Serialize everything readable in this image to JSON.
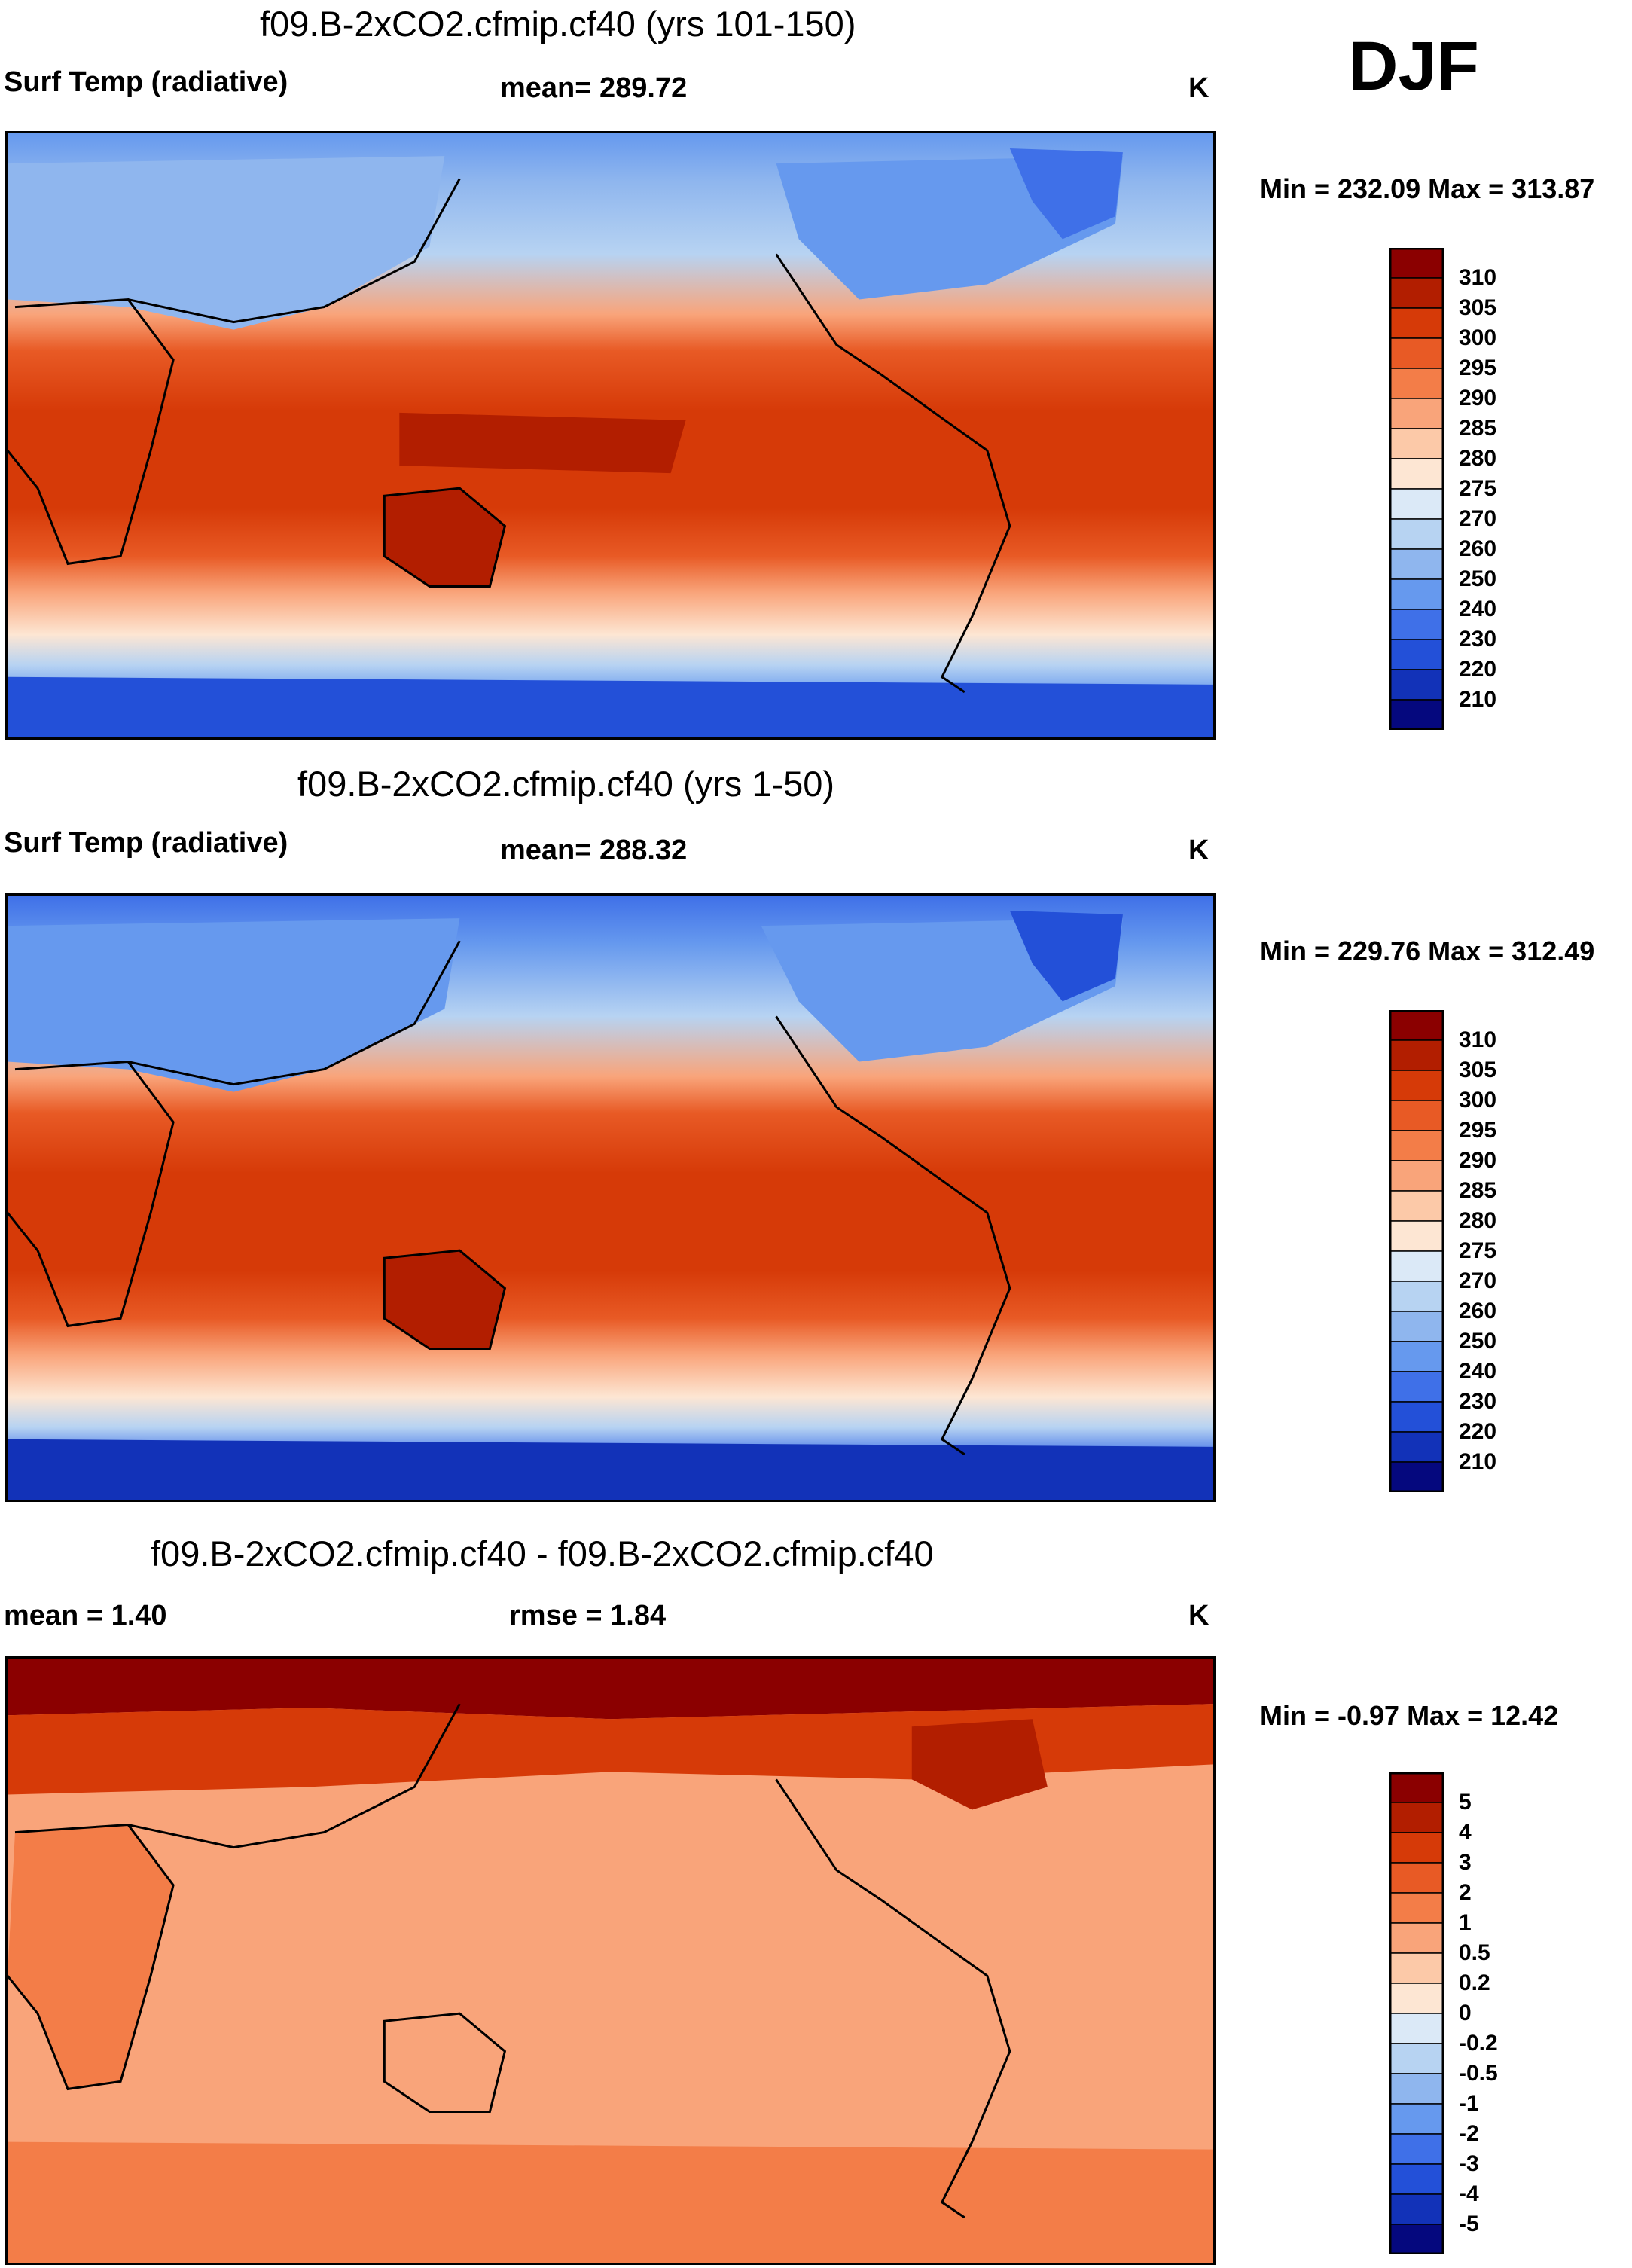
{
  "season": "DJF",
  "units_label": "K",
  "panels": [
    {
      "title": "f09.B-2xCO2.cfmip.cf40 (yrs 101-150)",
      "variable": "Surf Temp (radiative)",
      "mean": "mean= 289.72",
      "units": "K",
      "minmax": "Min = 232.09 Max = 313.87"
    },
    {
      "title": "f09.B-2xCO2.cfmip.cf40 (yrs 1-50)",
      "variable": "Surf Temp (radiative)",
      "mean": "mean= 288.32",
      "units": "K",
      "minmax": "Min = 229.76 Max = 312.49"
    },
    {
      "title": "f09.B-2xCO2.cfmip.cf40 - f09.B-2xCO2.cfmip.cf40",
      "mean": "mean =   1.40",
      "rmse": "rmse =   1.84",
      "units": "K",
      "minmax": "Min =  -0.97 Max =  12.42"
    }
  ],
  "colorbars": {
    "absolute": {
      "labels": [
        "310",
        "305",
        "300",
        "295",
        "290",
        "285",
        "280",
        "275",
        "270",
        "260",
        "250",
        "240",
        "230",
        "220",
        "210"
      ],
      "colors": [
        "#8b0000",
        "#b21e00",
        "#d63a08",
        "#e85a25",
        "#f37d48",
        "#f9a47a",
        "#fcc9a8",
        "#fde6d3",
        "#dbe9f7",
        "#b7d3f2",
        "#8fb6ee",
        "#6699ee",
        "#3f70e8",
        "#2350d8",
        "#1232b8",
        "#05087e"
      ]
    },
    "difference": {
      "labels": [
        "5",
        "4",
        "3",
        "2",
        "1",
        "0.5",
        "0.2",
        "0",
        "-0.2",
        "-0.5",
        "-1",
        "-2",
        "-3",
        "-4",
        "-5"
      ],
      "colors": [
        "#8b0000",
        "#b21e00",
        "#d63a08",
        "#e85a25",
        "#f37d48",
        "#f9a47a",
        "#fcc9a8",
        "#fde6d3",
        "#dbe9f7",
        "#b7d3f2",
        "#8fb6ee",
        "#6699ee",
        "#3f70e8",
        "#2350d8",
        "#1232b8",
        "#05087e"
      ]
    }
  }
}
